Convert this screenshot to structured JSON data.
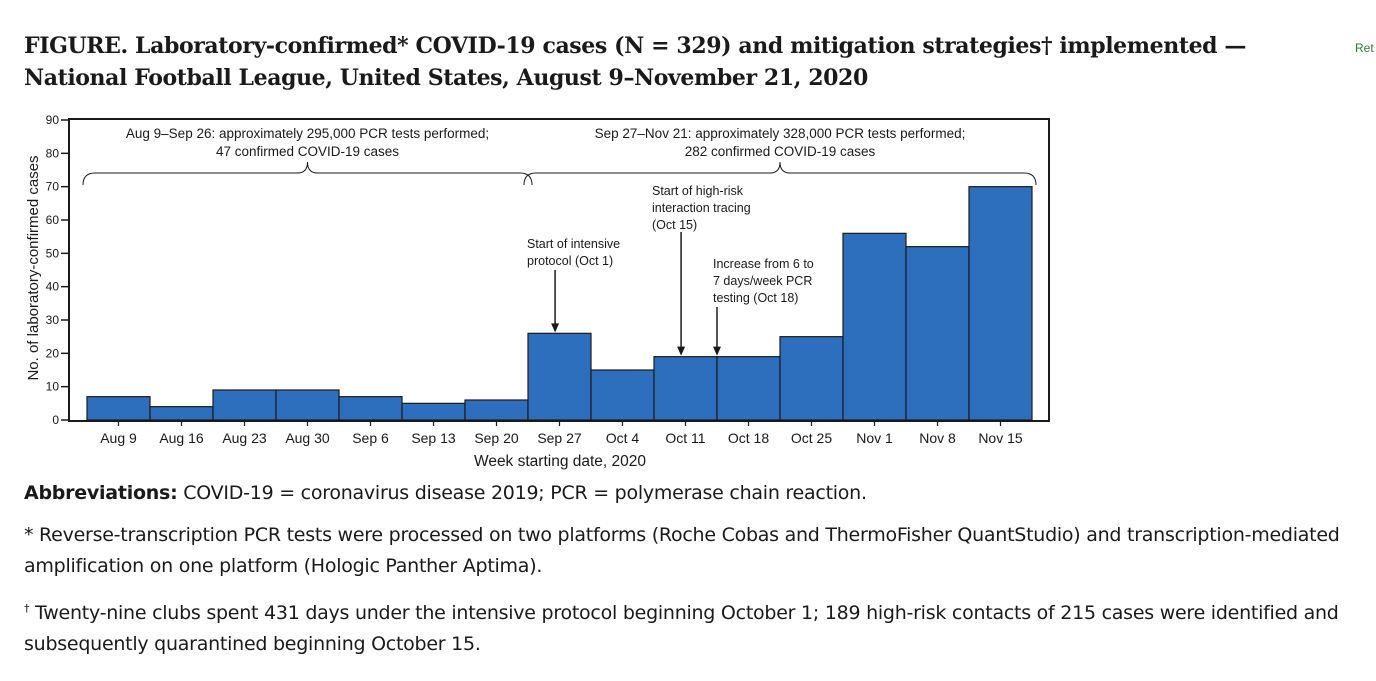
{
  "figure": {
    "title": "FIGURE. Laboratory-confirmed* COVID-19 cases (N = 329) and mitigation strategies† implemented — National Football League, United States, August 9–November 21, 2020"
  },
  "side_link": "Ret",
  "chart_data": {
    "type": "bar",
    "xlabel": "Week starting date, 2020",
    "ylabel": "No. of laboratory-confirmed cases",
    "ylim": [
      0,
      90
    ],
    "yticks": [
      0,
      10,
      20,
      30,
      40,
      50,
      60,
      70,
      80,
      90
    ],
    "categories": [
      "Aug 9",
      "Aug 16",
      "Aug 23",
      "Aug 30",
      "Sep 6",
      "Sep 13",
      "Sep 20",
      "Sep 27",
      "Oct 4",
      "Oct 11",
      "Oct 18",
      "Oct 25",
      "Nov 1",
      "Nov 8",
      "Nov 15"
    ],
    "values": [
      7,
      4,
      9,
      9,
      7,
      5,
      6,
      26,
      15,
      19,
      19,
      25,
      56,
      52,
      70
    ],
    "bar_color": "#2e6fbd",
    "grid": false,
    "periods": [
      {
        "line1": "Aug 9–Sep 26: approximately 295,000 PCR tests performed;",
        "line2": "47 confirmed COVID-19 cases",
        "from": "Aug 9",
        "to": "Sep 20"
      },
      {
        "line1": "Sep 27–Nov 21: approximately 328,000 PCR tests performed;",
        "line2": "282 confirmed COVID-19 cases",
        "from": "Sep 27",
        "to": "Nov 15"
      }
    ],
    "annotations": [
      {
        "lines": [
          "Start of intensive",
          "protocol (Oct 1)"
        ],
        "date_index": 7.43,
        "arrow_to": 26
      },
      {
        "lines": [
          "Start of high-risk",
          "interaction tracing",
          "(Oct 15)"
        ],
        "date_index": 9.43,
        "arrow_to": 19
      },
      {
        "lines": [
          "Increase from 6 to",
          "7 days/week PCR",
          "testing  (Oct 18)"
        ],
        "date_index": 10.0,
        "arrow_to": 19
      }
    ]
  },
  "notes": {
    "abbr_label": "Abbreviations:",
    "abbr_text": " COVID-19 = coronavirus disease 2019; PCR = polymerase chain reaction.",
    "star_note": "* Reverse-transcription PCR tests were processed on two platforms (Roche Cobas and ThermoFisher QuantStudio) and transcription-mediated amplification on one platform (Hologic Panther Aptima).",
    "dagger_symbol": "†",
    "dagger_note": " Twenty-nine clubs spent 431 days under the intensive protocol beginning October 1; 189 high-risk contacts of 215 cases were identified and subsequently quarantined beginning October 15."
  }
}
